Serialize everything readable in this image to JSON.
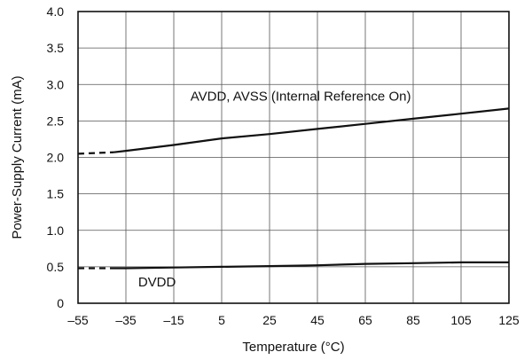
{
  "chart_data": {
    "type": "line",
    "title": "",
    "xlabel": "Temperature (°C)",
    "ylabel": "Power-Supply Current (mA)",
    "xlim": [
      -55,
      125
    ],
    "ylim": [
      0,
      4.0
    ],
    "grid": true,
    "x_ticks": [
      -55,
      -35,
      -15,
      5,
      25,
      45,
      65,
      85,
      105,
      125
    ],
    "x_tick_labels": [
      "–55",
      "–35",
      "–15",
      "5",
      "25",
      "45",
      "65",
      "85",
      "105",
      "125"
    ],
    "y_ticks": [
      0,
      0.5,
      1.0,
      1.5,
      2.0,
      2.5,
      3.0,
      3.5,
      4.0
    ],
    "y_tick_labels": [
      "0",
      "0.5",
      "1.0",
      "1.5",
      "2.0",
      "2.5",
      "3.0",
      "3.5",
      "4.0"
    ],
    "series": [
      {
        "name": "AVDD, AVSS (Internal Reference On)",
        "x": [
          -55,
          -40,
          -35,
          -15,
          5,
          25,
          45,
          65,
          85,
          105,
          125
        ],
        "y": [
          2.05,
          2.07,
          2.09,
          2.17,
          2.26,
          2.32,
          2.39,
          2.46,
          2.53,
          2.6,
          2.67
        ],
        "dashed_until_x": -40
      },
      {
        "name": "DVDD",
        "x": [
          -55,
          -40,
          -35,
          -15,
          5,
          25,
          45,
          65,
          85,
          105,
          125
        ],
        "y": [
          0.48,
          0.48,
          0.48,
          0.49,
          0.5,
          0.51,
          0.52,
          0.54,
          0.55,
          0.56,
          0.56
        ],
        "dashed_until_x": -40
      }
    ],
    "annotations": [
      {
        "text": "AVDD, AVSS (Internal Reference On)",
        "x": 38,
        "y": 2.78
      },
      {
        "text": "DVDD",
        "x": -22,
        "y": 0.23
      }
    ]
  }
}
